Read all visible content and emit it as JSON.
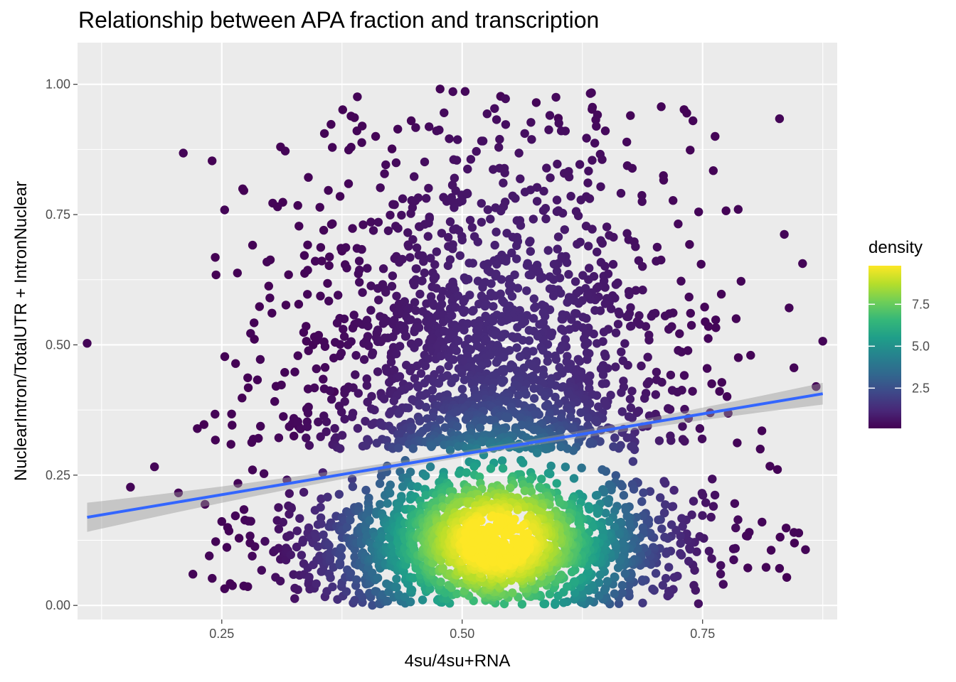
{
  "chart_data": {
    "type": "scatter",
    "title": "Relationship between APA fraction and transcription",
    "xlabel": "4su/4su+RNA",
    "ylabel": "NuclearIntron/TotalUTR + IntronNuclear",
    "xlim": [
      0.1,
      0.89
    ],
    "ylim": [
      -0.027,
      1.08
    ],
    "xticks": [
      0.25,
      0.5,
      0.75
    ],
    "xtick_labels": [
      "0.25",
      "0.50",
      "0.75"
    ],
    "yticks": [
      0.0,
      0.25,
      0.5,
      0.75,
      1.0
    ],
    "ytick_labels": [
      "0.00",
      "0.25",
      "0.50",
      "0.75",
      "1.00"
    ],
    "grid": true,
    "panel_background": "#ebebeb",
    "grid_color": "#ffffff",
    "legend": {
      "title": "density",
      "position": "right",
      "range": [
        0.1,
        9.8
      ],
      "breaks": [
        2.5,
        5.0,
        7.5
      ],
      "break_labels": [
        "2.5",
        "5.0",
        "7.5"
      ],
      "palette": [
        "#440154",
        "#482878",
        "#3e4989",
        "#31688e",
        "#26828e",
        "#1f9e89",
        "#35b779",
        "#6ece58",
        "#b5de2b",
        "#fde725"
      ]
    },
    "trend": {
      "method": "linear",
      "color": "#3366ff",
      "band_color": "#999999",
      "x_range": [
        0.11,
        0.875
      ],
      "intercept": 0.135,
      "slope": 0.31,
      "se_at_ends": 0.028,
      "se_at_center": 0.006,
      "center_x": 0.53
    },
    "cluster": {
      "n_points": 3400,
      "x_mean": 0.53,
      "x_sd": 0.105,
      "y_peak": 0.12,
      "y_spread": 0.18,
      "max_density": 9.8
    },
    "outliers": [
      [
        0.11,
        0.503
      ],
      [
        0.155,
        0.227
      ],
      [
        0.18,
        0.266
      ],
      [
        0.205,
        0.216
      ],
      [
        0.21,
        0.868
      ],
      [
        0.22,
        0.06
      ],
      [
        0.237,
        0.095
      ],
      [
        0.24,
        0.052
      ],
      [
        0.243,
        0.367
      ],
      [
        0.25,
        0.161
      ],
      [
        0.253,
        0.759
      ],
      [
        0.253,
        0.032
      ],
      [
        0.268,
        0.129
      ],
      [
        0.277,
        0.036
      ],
      [
        0.28,
        0.522
      ],
      [
        0.282,
        0.26
      ],
      [
        0.29,
        0.472
      ],
      [
        0.297,
        0.659
      ],
      [
        0.3,
        0.59
      ],
      [
        0.303,
        0.772
      ],
      [
        0.308,
        0.765
      ],
      [
        0.312,
        0.423
      ],
      [
        0.316,
        0.872
      ],
      [
        0.325,
        0.325
      ],
      [
        0.33,
        0.578
      ],
      [
        0.33,
        0.343
      ],
      [
        0.338,
        0.507
      ],
      [
        0.345,
        0.5
      ],
      [
        0.352,
        0.764
      ],
      [
        0.356,
        0.72
      ],
      [
        0.36,
        0.618
      ],
      [
        0.367,
        0.41
      ],
      [
        0.373,
        0.785
      ],
      [
        0.375,
        0.68
      ],
      [
        0.382,
        0.874
      ],
      [
        0.388,
        0.936
      ],
      [
        0.391,
        0.976
      ],
      [
        0.396,
        0.92
      ],
      [
        0.41,
        0.9
      ],
      [
        0.427,
        0.876
      ],
      [
        0.433,
        0.914
      ],
      [
        0.447,
        0.93
      ],
      [
        0.477,
        0.991
      ],
      [
        0.54,
        0.977
      ],
      [
        0.577,
        0.965
      ],
      [
        0.6,
        0.935
      ],
      [
        0.635,
        0.952
      ],
      [
        0.675,
        0.94
      ],
      [
        0.707,
        0.957
      ],
      [
        0.74,
        0.93
      ],
      [
        0.763,
        0.9
      ],
      [
        0.787,
        0.76
      ],
      [
        0.79,
        0.622
      ],
      [
        0.8,
        0.48
      ],
      [
        0.83,
        0.934
      ],
      [
        0.835,
        0.712
      ],
      [
        0.84,
        0.571
      ],
      [
        0.845,
        0.456
      ],
      [
        0.854,
        0.656
      ],
      [
        0.875,
        0.507
      ],
      [
        0.868,
        0.42
      ],
      [
        0.857,
        0.107
      ],
      [
        0.845,
        0.14
      ],
      [
        0.83,
        0.071
      ],
      [
        0.816,
        0.073
      ],
      [
        0.85,
        0.139
      ],
      [
        0.81,
        0.3
      ],
      [
        0.797,
        0.072
      ],
      [
        0.77,
        0.428
      ],
      [
        0.82,
        0.267
      ]
    ]
  }
}
